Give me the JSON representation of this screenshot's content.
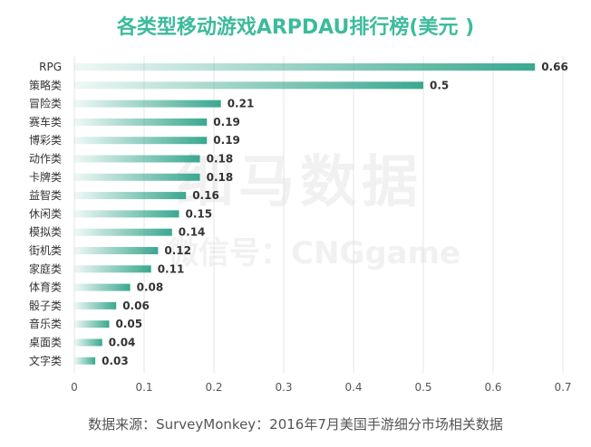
{
  "chart_data": {
    "type": "bar",
    "orientation": "horizontal",
    "title": "各类型移动游戏ARPDAU排行榜(美元 )",
    "categories": [
      "RPG",
      "策略类",
      "冒险类",
      "赛车类",
      "博彩类",
      "动作类",
      "卡牌类",
      "益智类",
      "休闲类",
      "模拟类",
      "街机类",
      "家庭类",
      "体育类",
      "骰子类",
      "音乐类",
      "桌面类",
      "文字类"
    ],
    "values": [
      0.66,
      0.5,
      0.21,
      0.19,
      0.19,
      0.18,
      0.18,
      0.16,
      0.15,
      0.14,
      0.12,
      0.11,
      0.08,
      0.06,
      0.05,
      0.04,
      0.03
    ],
    "value_labels": [
      "0.66",
      "0.5",
      "0.21",
      "0.19",
      "0.19",
      "0.18",
      "0.18",
      "0.16",
      "0.15",
      "0.14",
      "0.12",
      "0.11",
      "0.08",
      "0.06",
      "0.05",
      "0.04",
      "0.03"
    ],
    "xlim": [
      0,
      0.7
    ],
    "xticks": [
      "0",
      "0.1",
      "0.2",
      "0.3",
      "0.4",
      "0.5",
      "0.6",
      "0.7"
    ],
    "grid": true,
    "bar_color": "#3aa88f",
    "title_color": "#3dbb9c"
  },
  "source": "数据来源：SurveyMonkey：2016年7月美国手游细分市场相关数据",
  "watermark": {
    "line1": "细马数据",
    "line2": "微信号：CNGgame"
  }
}
